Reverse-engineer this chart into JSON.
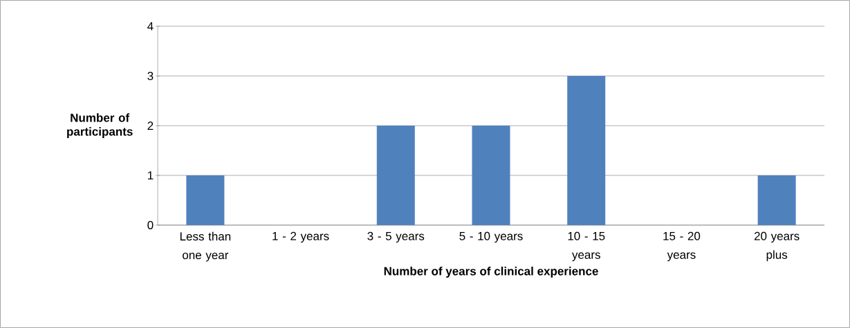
{
  "chart_data": {
    "type": "bar",
    "xlabel": "Number of years of clinical experience",
    "ylabel": "Number of participants",
    "categories": [
      "Less than one year",
      "1 - 2 years",
      "3 - 5 years",
      "5 - 10 years",
      "10 - 15 years",
      "15 - 20 years",
      "20 years plus"
    ],
    "values": [
      1,
      0,
      2,
      2,
      3,
      0,
      1
    ],
    "color": "#4f81bd",
    "ylim": [
      0,
      4
    ],
    "yticks": [
      0,
      1,
      2,
      3,
      4
    ],
    "grid": "y"
  }
}
